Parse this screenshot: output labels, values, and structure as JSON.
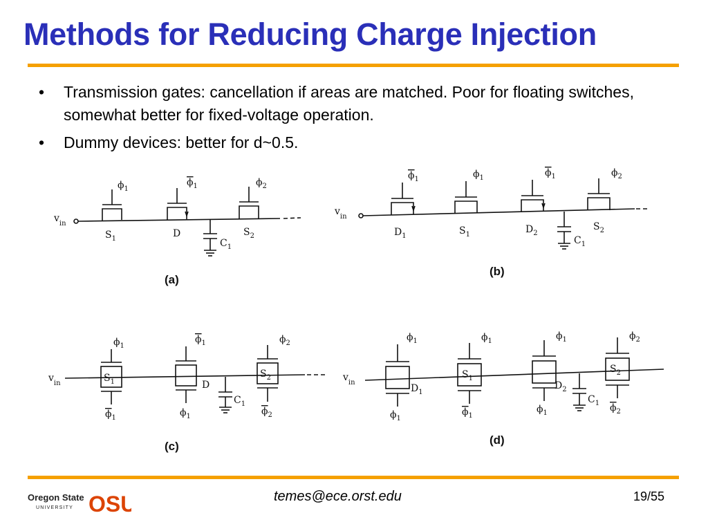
{
  "title": "Methods for Reducing Charge Injection",
  "bullets": [
    "Transmission gates: cancellation if areas are matched. Poor for floating switches, somewhat better for fixed-voltage operation.",
    "Dummy devices: better for d~0.5."
  ],
  "bullet_glyph": "•",
  "figures": {
    "a": {
      "caption": "(a)",
      "vin": "v",
      "vin_sub": "in",
      "phi1": "ϕ",
      "phi1_sub": "1",
      "phi1bar": "ϕ",
      "phi1bar_sub": "1",
      "phi2": "ϕ",
      "phi2_sub": "2",
      "s1": "S",
      "s1_sub": "1",
      "d": "D",
      "s2": "S",
      "s2_sub": "2",
      "c1": "C",
      "c1_sub": "1"
    },
    "b": {
      "caption": "(b)",
      "vin": "v",
      "vin_sub": "in",
      "g1": "ϕ",
      "g1_sub": "1",
      "g2": "ϕ",
      "g2_sub": "1",
      "g3": "ϕ",
      "g3_sub": "1",
      "g4": "ϕ",
      "g4_sub": "2",
      "d1": "D",
      "d1_sub": "1",
      "s1": "S",
      "s1_sub": "1",
      "d2": "D",
      "d2_sub": "2",
      "s2": "S",
      "s2_sub": "2",
      "c1": "C",
      "c1_sub": "1"
    },
    "c": {
      "caption": "(c)",
      "vin": "v",
      "vin_sub": "in",
      "t1": "ϕ",
      "t1_sub": "1",
      "t2": "ϕ",
      "t2_sub": "1",
      "t3": "ϕ",
      "t3_sub": "2",
      "b1": "ϕ",
      "b1_sub": "1",
      "b2": "ϕ",
      "b2_sub": "1",
      "b3": "ϕ",
      "b3_sub": "2",
      "s1": "S",
      "s1_sub": "1",
      "d": "D",
      "s2": "S",
      "s2_sub": "2",
      "c1": "C",
      "c1_sub": "1"
    },
    "d": {
      "caption": "(d)",
      "vin": "v",
      "vin_sub": "in",
      "t1": "ϕ",
      "t1_sub": "1",
      "t2": "ϕ",
      "t2_sub": "1",
      "t3": "ϕ",
      "t3_sub": "1",
      "t4": "ϕ",
      "t4_sub": "2",
      "b1": "ϕ",
      "b1_sub": "1",
      "b2": "ϕ",
      "b2_sub": "1",
      "b3": "ϕ",
      "b3_sub": "1",
      "b4": "ϕ",
      "b4_sub": "2",
      "d1": "D",
      "d1_sub": "1",
      "s1": "S",
      "s1_sub": "1",
      "d2": "D",
      "d2_sub": "2",
      "s2": "S",
      "s2_sub": "2",
      "c1": "C",
      "c1_sub": "1"
    }
  },
  "footer": {
    "logo_line1": "Oregon State",
    "logo_line2": "UNIVERSITY",
    "logo_mark": "OSU",
    "email": "temes@ece.orst.edu",
    "page": "19/55"
  },
  "colors": {
    "title": "#2a2fb8",
    "rule": "#f5a000",
    "osu_orange": "#dc4405"
  }
}
